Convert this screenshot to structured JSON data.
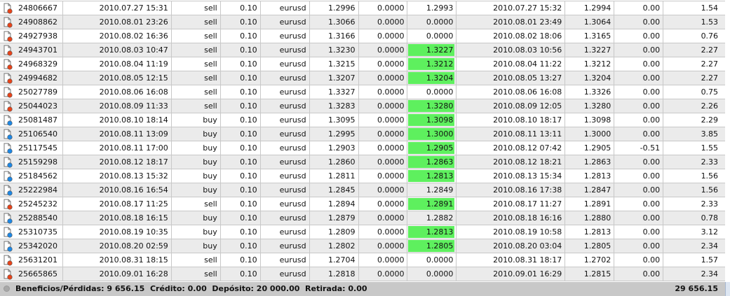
{
  "colors": {
    "tp_highlight": "#5ef05e",
    "row_alt": "#ebebeb",
    "footer_bg": "#c8c8c8",
    "sell_icon": "#e8441a",
    "buy_icon": "#1e88e5"
  },
  "rows": [
    {
      "ticket": "24806667",
      "open_time": "2010.07.27 15:31",
      "type": "sell",
      "volume": "0.10",
      "symbol": "eurusd",
      "open_price": "1.2996",
      "sl": "0.0000",
      "tp": "1.2993",
      "tp_hit": false,
      "close_time": "2010.07.27 15:32",
      "close_price": "1.2994",
      "swap": "0.00",
      "profit": "1.54"
    },
    {
      "ticket": "24908862",
      "open_time": "2010.08.01 23:26",
      "type": "sell",
      "volume": "0.10",
      "symbol": "eurusd",
      "open_price": "1.3066",
      "sl": "0.0000",
      "tp": "0.0000",
      "tp_hit": false,
      "close_time": "2010.08.01 23:49",
      "close_price": "1.3064",
      "swap": "0.00",
      "profit": "1.53"
    },
    {
      "ticket": "24927938",
      "open_time": "2010.08.02 16:36",
      "type": "sell",
      "volume": "0.10",
      "symbol": "eurusd",
      "open_price": "1.3166",
      "sl": "0.0000",
      "tp": "0.0000",
      "tp_hit": false,
      "close_time": "2010.08.02 18:06",
      "close_price": "1.3165",
      "swap": "0.00",
      "profit": "0.76"
    },
    {
      "ticket": "24943701",
      "open_time": "2010.08.03 10:47",
      "type": "sell",
      "volume": "0.10",
      "symbol": "eurusd",
      "open_price": "1.3230",
      "sl": "0.0000",
      "tp": "1.3227",
      "tp_hit": true,
      "close_time": "2010.08.03 10:56",
      "close_price": "1.3227",
      "swap": "0.00",
      "profit": "2.27"
    },
    {
      "ticket": "24968329",
      "open_time": "2010.08.04 11:19",
      "type": "sell",
      "volume": "0.10",
      "symbol": "eurusd",
      "open_price": "1.3215",
      "sl": "0.0000",
      "tp": "1.3212",
      "tp_hit": true,
      "close_time": "2010.08.04 11:22",
      "close_price": "1.3212",
      "swap": "0.00",
      "profit": "2.27"
    },
    {
      "ticket": "24994682",
      "open_time": "2010.08.05 12:15",
      "type": "sell",
      "volume": "0.10",
      "symbol": "eurusd",
      "open_price": "1.3207",
      "sl": "0.0000",
      "tp": "1.3204",
      "tp_hit": true,
      "close_time": "2010.08.05 13:27",
      "close_price": "1.3204",
      "swap": "0.00",
      "profit": "2.27"
    },
    {
      "ticket": "25027789",
      "open_time": "2010.08.06 16:08",
      "type": "sell",
      "volume": "0.10",
      "symbol": "eurusd",
      "open_price": "1.3327",
      "sl": "0.0000",
      "tp": "0.0000",
      "tp_hit": false,
      "close_time": "2010.08.06 16:08",
      "close_price": "1.3326",
      "swap": "0.00",
      "profit": "0.75"
    },
    {
      "ticket": "25044023",
      "open_time": "2010.08.09 11:33",
      "type": "sell",
      "volume": "0.10",
      "symbol": "eurusd",
      "open_price": "1.3283",
      "sl": "0.0000",
      "tp": "1.3280",
      "tp_hit": true,
      "close_time": "2010.08.09 12:05",
      "close_price": "1.3280",
      "swap": "0.00",
      "profit": "2.26"
    },
    {
      "ticket": "25081487",
      "open_time": "2010.08.10 18:14",
      "type": "buy",
      "volume": "0.10",
      "symbol": "eurusd",
      "open_price": "1.3095",
      "sl": "0.0000",
      "tp": "1.3098",
      "tp_hit": true,
      "close_time": "2010.08.10 18:17",
      "close_price": "1.3098",
      "swap": "0.00",
      "profit": "2.29"
    },
    {
      "ticket": "25106540",
      "open_time": "2010.08.11 13:09",
      "type": "buy",
      "volume": "0.10",
      "symbol": "eurusd",
      "open_price": "1.2995",
      "sl": "0.0000",
      "tp": "1.3000",
      "tp_hit": true,
      "close_time": "2010.08.11 13:11",
      "close_price": "1.3000",
      "swap": "0.00",
      "profit": "3.85"
    },
    {
      "ticket": "25117545",
      "open_time": "2010.08.11 17:00",
      "type": "buy",
      "volume": "0.10",
      "symbol": "eurusd",
      "open_price": "1.2903",
      "sl": "0.0000",
      "tp": "1.2905",
      "tp_hit": true,
      "close_time": "2010.08.12 07:42",
      "close_price": "1.2905",
      "swap": "-0.51",
      "profit": "1.55"
    },
    {
      "ticket": "25159298",
      "open_time": "2010.08.12 18:17",
      "type": "buy",
      "volume": "0.10",
      "symbol": "eurusd",
      "open_price": "1.2860",
      "sl": "0.0000",
      "tp": "1.2863",
      "tp_hit": true,
      "close_time": "2010.08.12 18:21",
      "close_price": "1.2863",
      "swap": "0.00",
      "profit": "2.33"
    },
    {
      "ticket": "25184562",
      "open_time": "2010.08.13 15:32",
      "type": "buy",
      "volume": "0.10",
      "symbol": "eurusd",
      "open_price": "1.2811",
      "sl": "0.0000",
      "tp": "1.2813",
      "tp_hit": true,
      "close_time": "2010.08.13 15:34",
      "close_price": "1.2813",
      "swap": "0.00",
      "profit": "1.56"
    },
    {
      "ticket": "25222984",
      "open_time": "2010.08.16 16:54",
      "type": "buy",
      "volume": "0.10",
      "symbol": "eurusd",
      "open_price": "1.2845",
      "sl": "0.0000",
      "tp": "1.2849",
      "tp_hit": false,
      "close_time": "2010.08.16 17:38",
      "close_price": "1.2847",
      "swap": "0.00",
      "profit": "1.56"
    },
    {
      "ticket": "25245232",
      "open_time": "2010.08.17 11:25",
      "type": "sell",
      "volume": "0.10",
      "symbol": "eurusd",
      "open_price": "1.2894",
      "sl": "0.0000",
      "tp": "1.2891",
      "tp_hit": true,
      "close_time": "2010.08.17 11:27",
      "close_price": "1.2891",
      "swap": "0.00",
      "profit": "2.33"
    },
    {
      "ticket": "25288540",
      "open_time": "2010.08.18 16:15",
      "type": "buy",
      "volume": "0.10",
      "symbol": "eurusd",
      "open_price": "1.2879",
      "sl": "0.0000",
      "tp": "1.2882",
      "tp_hit": false,
      "close_time": "2010.08.18 16:16",
      "close_price": "1.2880",
      "swap": "0.00",
      "profit": "0.78"
    },
    {
      "ticket": "25310735",
      "open_time": "2010.08.19 10:35",
      "type": "buy",
      "volume": "0.10",
      "symbol": "eurusd",
      "open_price": "1.2809",
      "sl": "0.0000",
      "tp": "1.2813",
      "tp_hit": true,
      "close_time": "2010.08.19 10:58",
      "close_price": "1.2813",
      "swap": "0.00",
      "profit": "3.12"
    },
    {
      "ticket": "25342020",
      "open_time": "2010.08.20 02:59",
      "type": "buy",
      "volume": "0.10",
      "symbol": "eurusd",
      "open_price": "1.2802",
      "sl": "0.0000",
      "tp": "1.2805",
      "tp_hit": true,
      "close_time": "2010.08.20 03:04",
      "close_price": "1.2805",
      "swap": "0.00",
      "profit": "2.34"
    },
    {
      "ticket": "25631201",
      "open_time": "2010.08.31 18:15",
      "type": "sell",
      "volume": "0.10",
      "symbol": "eurusd",
      "open_price": "1.2704",
      "sl": "0.0000",
      "tp": "0.0000",
      "tp_hit": false,
      "close_time": "2010.08.31 18:17",
      "close_price": "1.2702",
      "swap": "0.00",
      "profit": "1.57"
    },
    {
      "ticket": "25665865",
      "open_time": "2010.09.01 16:28",
      "type": "sell",
      "volume": "0.10",
      "symbol": "eurusd",
      "open_price": "1.2818",
      "sl": "0.0000",
      "tp": "0.0000",
      "tp_hit": false,
      "close_time": "2010.09.01 16:29",
      "close_price": "1.2815",
      "swap": "0.00",
      "profit": "2.34"
    }
  ],
  "footer": {
    "summary": "Beneficios/Pérdidas: 9 656.15  Crédito: 0.00  Depósito: 20 000.00  Retirada: 0.00",
    "balance": "29 656.15"
  }
}
